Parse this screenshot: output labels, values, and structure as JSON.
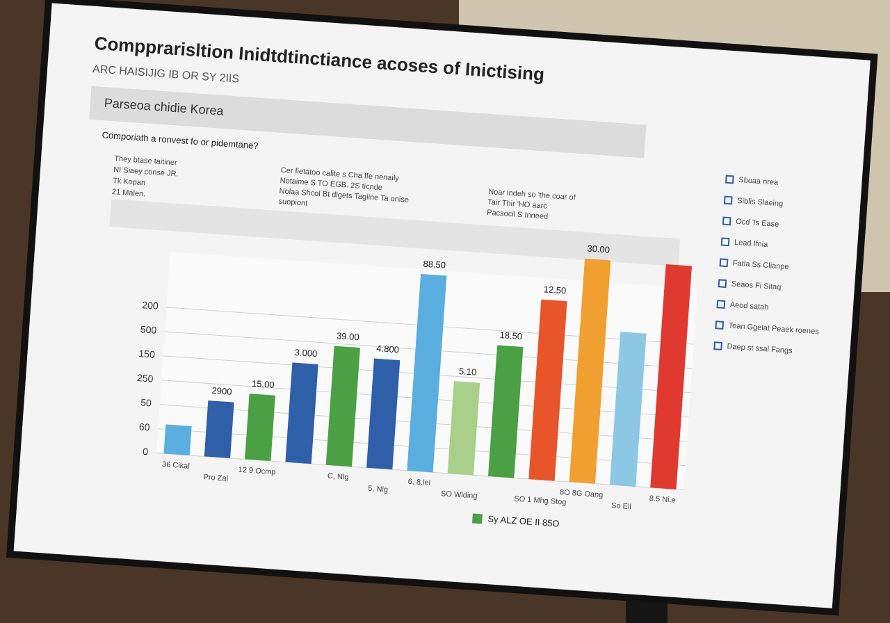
{
  "chart_data": {
    "type": "bar",
    "title": "Compprarisltion Inidtdtinctiance acoses of Inictising",
    "subtitle": "ARC HAISIJIG IB OR SY 2IIS",
    "panel_title": "Parseoa chidie Korea",
    "question": "Comporiath a ronvest fo or pidemtane?",
    "notes": [
      "They btase taitiner",
      "NI Siaey conse JR.",
      "Tk Kopan",
      "21 Malen."
    ],
    "middle_note": [
      "Cer fietatoo calite s Cha ffe nenaily",
      "Notaime S TO EGB. 2S ticnde",
      "Nolaa Shcol Bt dlgets Tagiine Ta onise",
      "suopiont"
    ],
    "right_note": [
      "Noar indeh so 'the coar of",
      "Tair Thir 'HO aarc",
      "Pacsocil S Inneed"
    ],
    "categories": [
      "36 Cikal",
      "Pro Zal",
      "12 9 Ocmp",
      null,
      "C, Nlg",
      "5, Nlg",
      "6, 8.lel",
      "SO Wlding",
      null,
      "SO 1 Mhg Stog",
      "8O 8G Oang",
      "So Ell",
      "8.5 Ni.e"
    ],
    "values": [
      1.2,
      2.3,
      2.7,
      4.1,
      4.9,
      4.5,
      8.1,
      3.8,
      5.4,
      7.4,
      9.2,
      6.3,
      9.2
    ],
    "colors": [
      "#5aaee0",
      "#2f5fa8",
      "#4aa043",
      "#2f5fa8",
      "#4aa043",
      "#2f5fa8",
      "#5aaee0",
      "#a8d08a",
      "#4aa043",
      "#e8552a",
      "#f0a030",
      "#8cc8e4",
      "#e03a30"
    ],
    "annotations": [
      "2900",
      "15.00",
      "3.000",
      "39.00",
      "4.800",
      "88.50",
      "5.10",
      "18.50",
      "12.50",
      "30.00"
    ],
    "ylim": [
      0,
      10
    ],
    "yticks": [
      0,
      {
        "value": 1,
        "label": "60"
      },
      {
        "value": 2,
        "label": "50"
      },
      {
        "value": 3,
        "label": "250"
      },
      {
        "value": 4,
        "label": "150"
      },
      {
        "value": 5,
        "label": "500"
      },
      {
        "value": 6,
        "label": "200"
      }
    ],
    "grid": true,
    "legend": [
      "Sboaa nrea",
      "Siblis Slaeing",
      "Ocd Ts Ease",
      "Lead Ifnia",
      "Fatla Ss Clianpe",
      "Seaos Fi Sitaq",
      "Aeod satah",
      "Tean Ggelat Peaek roenes",
      "Daep st ssal Fangs"
    ],
    "legend_colors": [
      "#2f5fa8",
      "#2f5fa8",
      "#2f5fa8",
      "#2f5fa8",
      "#2f5fa8",
      "#2f5fa8",
      "#2f5fa8",
      "#2f5fa8",
      "#2f5fa8"
    ],
    "footer_legend": "Sy ALZ OE II 85O",
    "footer_color": "#4aa043"
  }
}
